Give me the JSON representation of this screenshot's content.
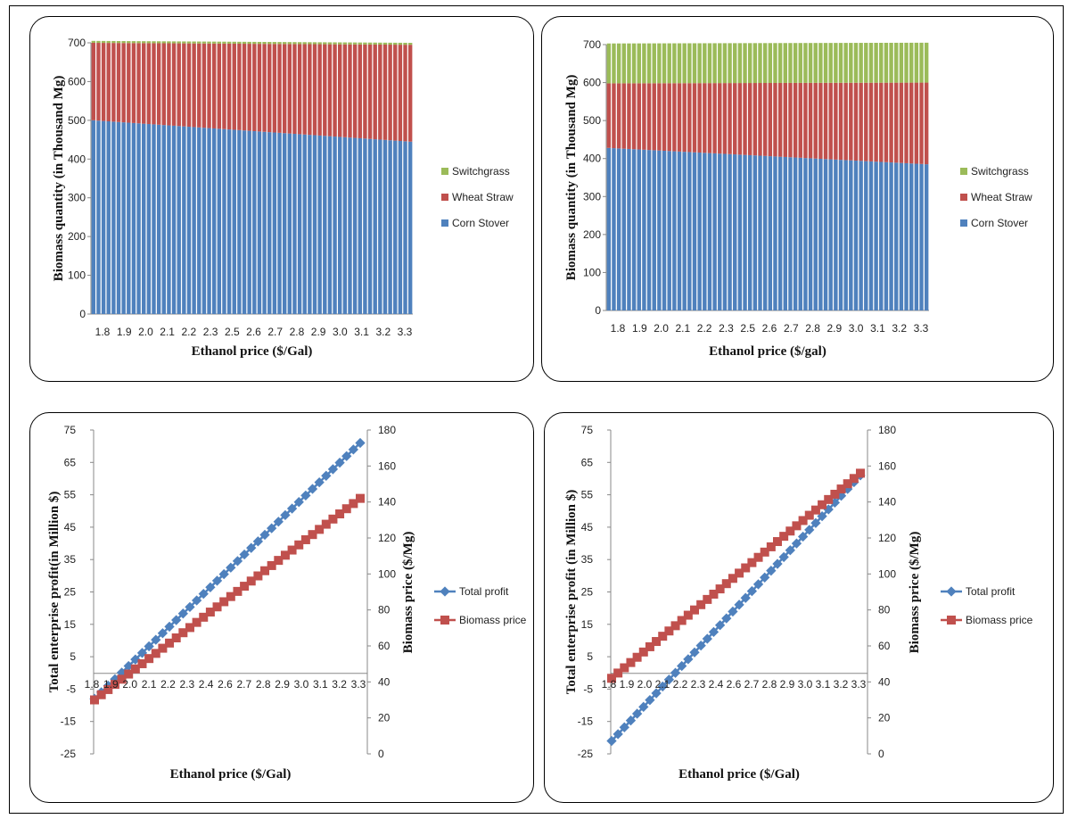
{
  "colors": {
    "corn": "#4f81bd",
    "wheat": "#c0504d",
    "switch": "#9bbb59",
    "profit": "#4f81bd",
    "biomass": "#c0504d"
  },
  "chart_data": [
    {
      "type": "bar",
      "stacked": true,
      "xlabel": "Ethanol price ($/Gal)",
      "ylabel": "Biomass quantity (in Thousand Mg)",
      "ylim": [
        0,
        700
      ],
      "yticks": [
        0,
        100,
        200,
        300,
        400,
        500,
        600,
        700
      ],
      "tick_labels": [
        "1.8",
        "1.9",
        "2.0",
        "2.1",
        "2.2",
        "2.3",
        "2.5",
        "2.6",
        "2.7",
        "2.8",
        "2.9",
        "3.0",
        "3.1",
        "3.2",
        "3.3"
      ],
      "n_bars": 64,
      "legend_position": "right",
      "series": [
        {
          "name": "Corn Stover",
          "start": 500,
          "end": 445
        },
        {
          "name": "Wheat Straw",
          "start": 200,
          "end": 250
        },
        {
          "name": "Switchgrass",
          "start": 5,
          "end": 5
        }
      ],
      "legend_order": [
        "Switchgrass",
        "Wheat Straw",
        "Corn Stover"
      ]
    },
    {
      "type": "bar",
      "stacked": true,
      "xlabel": "Ethanol price ($/gal)",
      "ylabel": "Biomass quantity (in Thousand Mg)",
      "ylim": [
        0,
        700
      ],
      "yticks": [
        0,
        100,
        200,
        300,
        400,
        500,
        600,
        700
      ],
      "tick_labels": [
        "1.8",
        "1.9",
        "2.0",
        "2.1",
        "2.2",
        "2.3",
        "2.5",
        "2.6",
        "2.7",
        "2.8",
        "2.9",
        "3.0",
        "3.1",
        "3.2",
        "3.3"
      ],
      "n_bars": 64,
      "legend_position": "right",
      "series": [
        {
          "name": "Corn Stover",
          "start": 428,
          "end": 385
        },
        {
          "name": "Wheat Straw",
          "start": 170,
          "end": 215
        },
        {
          "name": "Switchgrass",
          "start": 105,
          "end": 105
        }
      ],
      "legend_order": [
        "Switchgrass",
        "Wheat Straw",
        "Corn Stover"
      ]
    },
    {
      "type": "line",
      "xlabel": "Ethanol price ($/Gal)",
      "ylabel": "Total enterprise profit(in Million $)",
      "y2label": "Biomass price ($/Mg)",
      "ylim": [
        -25,
        75
      ],
      "yticks": [
        -25,
        -15,
        -5,
        5,
        15,
        25,
        35,
        45,
        55,
        65,
        75
      ],
      "y2lim": [
        0,
        180
      ],
      "y2ticks": [
        0,
        20,
        40,
        60,
        80,
        100,
        120,
        140,
        160,
        180
      ],
      "tick_labels": [
        "1.8",
        "1.9",
        "2.0",
        "2.1",
        "2.2",
        "2.3",
        "2.4",
        "2.6",
        "2.7",
        "2.8",
        "2.9",
        "3.0",
        "3.1",
        "3.2",
        "3.3"
      ],
      "n_points": 40,
      "legend_position": "right",
      "series": [
        {
          "name": "Total profit",
          "axis": "left",
          "start": -8,
          "end": 71
        },
        {
          "name": "Biomass price",
          "axis": "right",
          "start": 30,
          "end": 142
        }
      ]
    },
    {
      "type": "line",
      "xlabel": "Ethanol price ($/Gal)",
      "ylabel": "Total enterprise profit (in Million $)",
      "y2label": "Biomass price ($/Mg)",
      "ylim": [
        -25,
        75
      ],
      "yticks": [
        -25,
        -15,
        -5,
        5,
        15,
        25,
        35,
        45,
        55,
        65,
        75
      ],
      "y2lim": [
        0,
        180
      ],
      "y2ticks": [
        0,
        20,
        40,
        60,
        80,
        100,
        120,
        140,
        160,
        180
      ],
      "tick_labels": [
        "1.8",
        "1.9",
        "2.0",
        "2.1",
        "2.2",
        "2.3",
        "2.4",
        "2.6",
        "2.7",
        "2.8",
        "2.9",
        "3.0",
        "3.1",
        "3.2",
        "3.3"
      ],
      "n_points": 40,
      "legend_position": "right",
      "series": [
        {
          "name": "Total profit",
          "axis": "left",
          "start": -21,
          "end": 61
        },
        {
          "name": "Biomass price",
          "axis": "right",
          "start": 42,
          "end": 156
        }
      ]
    }
  ]
}
